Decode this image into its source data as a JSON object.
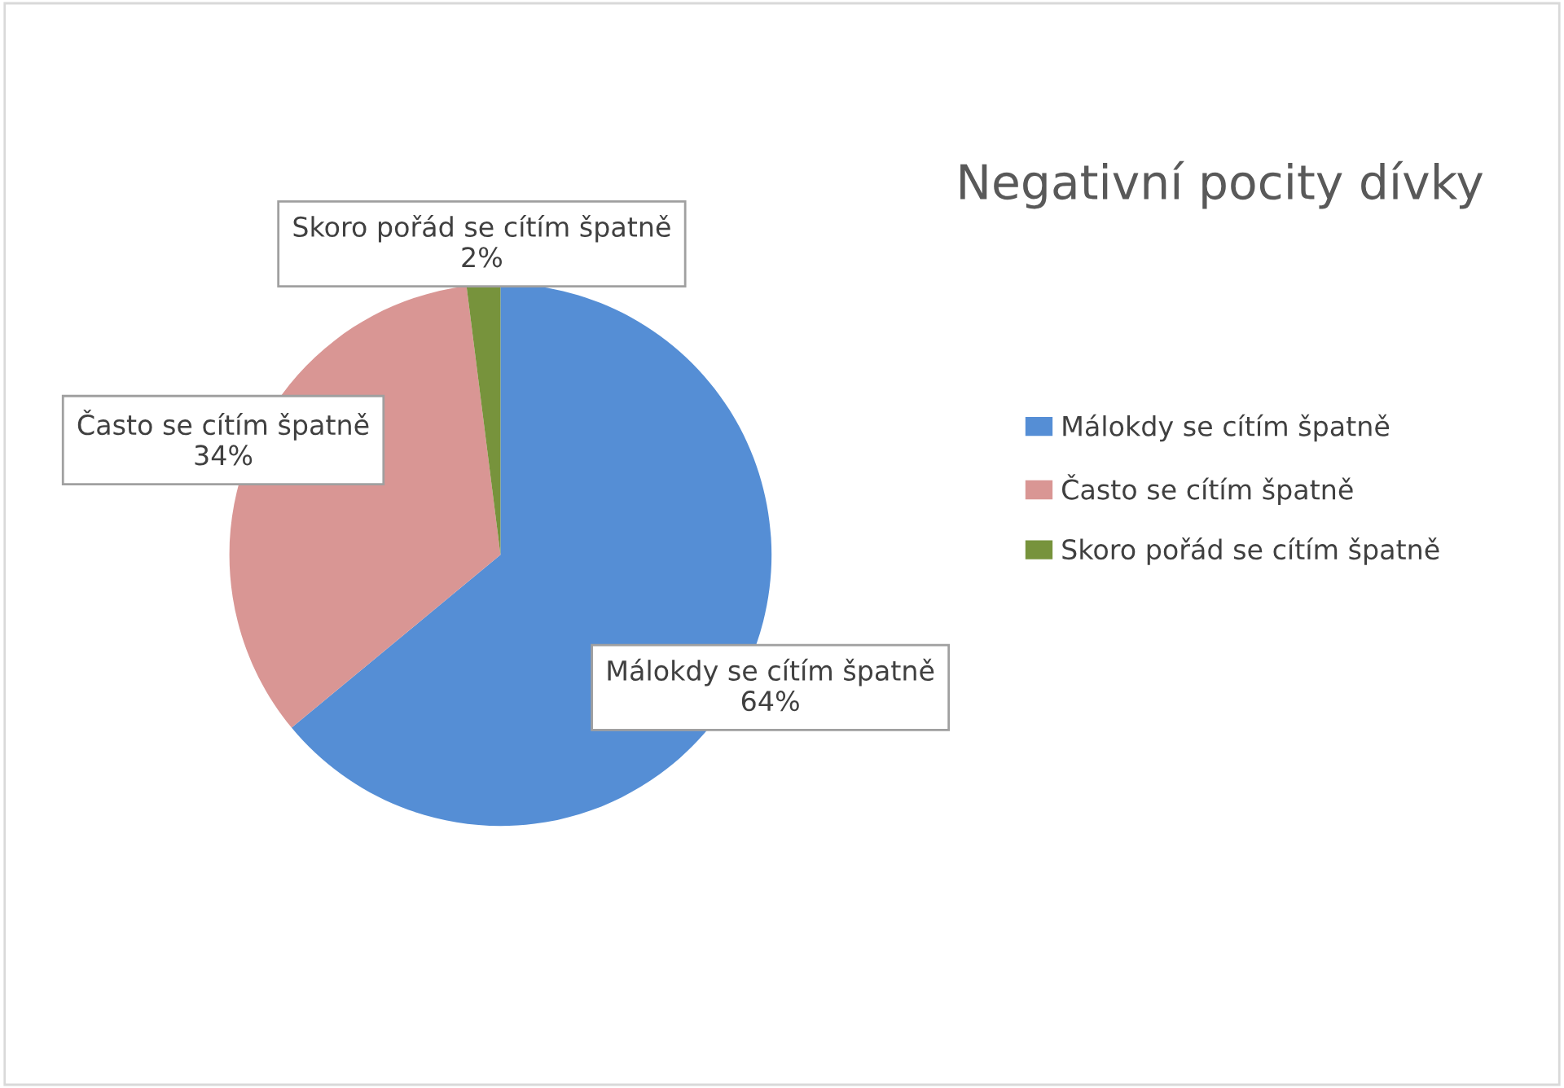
{
  "chart_data": {
    "type": "pie",
    "title": "Negativní pocity dívky",
    "categories": [
      "Málokdy se cítím špatně",
      "Často se cítím špatně",
      "Skoro pořád se cítím špatně"
    ],
    "values": [
      64,
      34,
      2
    ],
    "value_labels": [
      "64%",
      "34%",
      "2%"
    ],
    "colors": [
      "#558ed5",
      "#d99694",
      "#77933c"
    ],
    "legend": "right"
  }
}
